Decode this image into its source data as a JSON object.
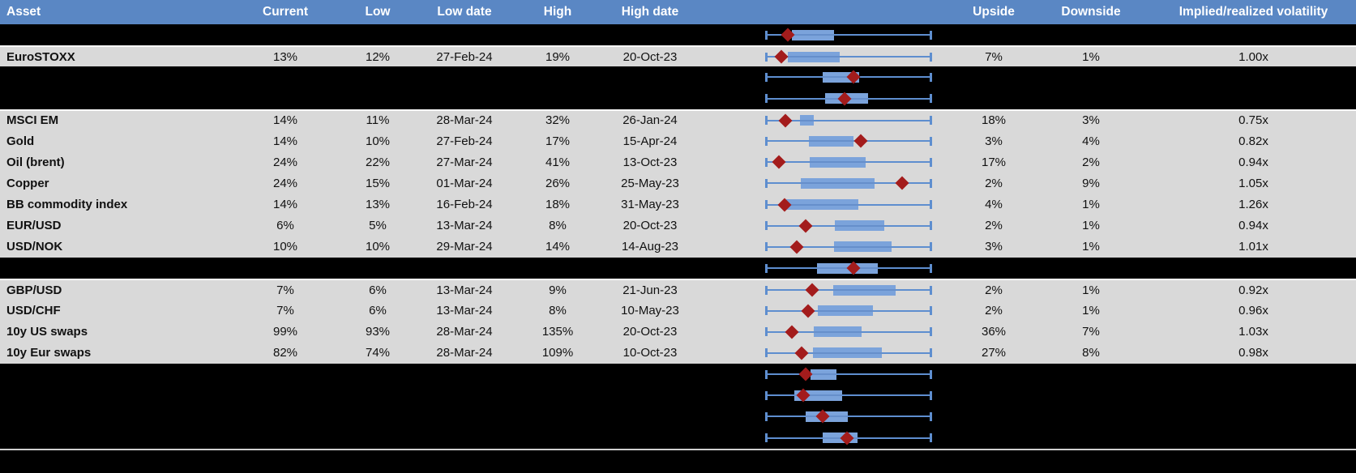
{
  "colors": {
    "header_bg": "#5A87C4",
    "row_bg": "#D9D9D9",
    "hidden_row_bg": "#000000",
    "box_fill": "#7BA3DB",
    "whisker": "#5E8ECF",
    "marker": "#A31C1C",
    "footer_separator": "#CFCFCF",
    "separator_white": "#FFFFFF"
  },
  "chart_data": {
    "type": "table",
    "columns": [
      "Asset",
      "Current",
      "Low",
      "Low date",
      "High",
      "High date",
      "",
      "Upside",
      "Downside",
      "Implied/realized volatility"
    ],
    "boxplot": {
      "description": "Horizontal box plot per row: whiskers = low/high of range, blue box = middle band, red diamond = current level",
      "units": "fractions 0-1 of whisker span (left cap = 0, right cap = 1)"
    },
    "rows": [
      {
        "kind": "hidden",
        "plot": {
          "box_lo": 0.157,
          "box_hi": 0.412,
          "marker": 0.137
        }
      },
      {
        "kind": "data",
        "sep_top": true,
        "asset": "EuroSTOXX",
        "current": "13%",
        "low": "12%",
        "low_date": "27-Feb-24",
        "high": "19%",
        "high_date": "20-Oct-23",
        "upside": "7%",
        "downside": "1%",
        "impl_real": "1.00x",
        "plot": {
          "box_lo": 0.135,
          "box_hi": 0.447,
          "marker": 0.096
        }
      },
      {
        "kind": "hidden",
        "plot": {
          "box_lo": 0.348,
          "box_hi": 0.564,
          "marker": 0.534
        }
      },
      {
        "kind": "hidden",
        "plot": {
          "box_lo": 0.358,
          "box_hi": 0.619,
          "marker": 0.48
        }
      },
      {
        "kind": "data",
        "sep_top": true,
        "asset": "MSCI EM",
        "current": "14%",
        "low": "11%",
        "low_date": "28-Mar-24",
        "high": "32%",
        "high_date": "26-Jan-24",
        "upside": "18%",
        "downside": "3%",
        "impl_real": "0.75x",
        "plot": {
          "box_lo": 0.206,
          "box_hi": 0.293,
          "marker": 0.121
        }
      },
      {
        "kind": "data",
        "asset": "Gold",
        "current": "14%",
        "low": "10%",
        "low_date": "27-Feb-24",
        "high": "17%",
        "high_date": "15-Apr-24",
        "upside": "3%",
        "downside": "4%",
        "impl_real": "0.82x",
        "plot": {
          "box_lo": 0.263,
          "box_hi": 0.533,
          "marker": 0.577
        }
      },
      {
        "kind": "data",
        "asset": "Oil (brent)",
        "current": "24%",
        "low": "22%",
        "low_date": "27-Mar-24",
        "high": "41%",
        "high_date": "13-Oct-23",
        "upside": "17%",
        "downside": "2%",
        "impl_real": "0.94x",
        "plot": {
          "box_lo": 0.268,
          "box_hi": 0.603,
          "marker": 0.083
        }
      },
      {
        "kind": "data",
        "asset": "Copper",
        "current": "24%",
        "low": "15%",
        "low_date": "01-Mar-24",
        "high": "26%",
        "high_date": "25-May-23",
        "upside": "2%",
        "downside": "9%",
        "impl_real": "1.05x",
        "plot": {
          "box_lo": 0.214,
          "box_hi": 0.66,
          "marker": 0.824
        }
      },
      {
        "kind": "data",
        "asset": "BB commodity index",
        "current": "14%",
        "low": "13%",
        "low_date": "16-Feb-24",
        "high": "18%",
        "high_date": "31-May-23",
        "upside": "4%",
        "downside": "1%",
        "impl_real": "1.26x",
        "plot": {
          "box_lo": 0.124,
          "box_hi": 0.562,
          "marker": 0.116
        }
      },
      {
        "kind": "data",
        "asset": "EUR/USD",
        "current": "6%",
        "low": "5%",
        "low_date": "13-Mar-24",
        "high": "8%",
        "high_date": "20-Oct-23",
        "upside": "2%",
        "downside": "1%",
        "impl_real": "0.94x",
        "plot": {
          "box_lo": 0.418,
          "box_hi": 0.717,
          "marker": 0.244
        }
      },
      {
        "kind": "data",
        "asset": "USD/NOK",
        "current": "10%",
        "low": "10%",
        "low_date": "29-Mar-24",
        "high": "14%",
        "high_date": "14-Aug-23",
        "upside": "3%",
        "downside": "1%",
        "impl_real": "1.01x",
        "plot": {
          "box_lo": 0.415,
          "box_hi": 0.761,
          "marker": 0.19
        }
      },
      {
        "kind": "hidden",
        "plot": {
          "box_lo": 0.312,
          "box_hi": 0.68,
          "marker": 0.533
        }
      },
      {
        "kind": "data",
        "sep_top": true,
        "asset": "GBP/USD",
        "current": "7%",
        "low": "6%",
        "low_date": "13-Mar-24",
        "high": "9%",
        "high_date": "21-Jun-23",
        "upside": "2%",
        "downside": "1%",
        "impl_real": "0.92x",
        "plot": {
          "box_lo": 0.41,
          "box_hi": 0.786,
          "marker": 0.284
        }
      },
      {
        "kind": "data",
        "asset": "USD/CHF",
        "current": "7%",
        "low": "6%",
        "low_date": "13-Mar-24",
        "high": "8%",
        "high_date": "10-May-23",
        "upside": "2%",
        "downside": "1%",
        "impl_real": "0.96x",
        "plot": {
          "box_lo": 0.315,
          "box_hi": 0.65,
          "marker": 0.258
        }
      },
      {
        "kind": "data",
        "asset": "10y US swaps",
        "current": "99%",
        "low": "93%",
        "low_date": "28-Mar-24",
        "high": "135%",
        "high_date": "20-Oct-23",
        "upside": "36%",
        "downside": "7%",
        "impl_real": "1.03x",
        "plot": {
          "box_lo": 0.293,
          "box_hi": 0.582,
          "marker": 0.157
        }
      },
      {
        "kind": "data",
        "asset": "10y Eur swaps",
        "current": "82%",
        "low": "74%",
        "low_date": "28-Mar-24",
        "high": "109%",
        "high_date": "10-Oct-23",
        "upside": "27%",
        "downside": "8%",
        "impl_real": "0.98x",
        "plot": {
          "box_lo": 0.288,
          "box_hi": 0.701,
          "marker": 0.219
        }
      },
      {
        "kind": "hidden",
        "plot": {
          "box_lo": 0.271,
          "box_hi": 0.431,
          "marker": 0.244
        }
      },
      {
        "kind": "hidden",
        "plot": {
          "box_lo": 0.173,
          "box_hi": 0.464,
          "marker": 0.227
        }
      },
      {
        "kind": "hidden",
        "plot": {
          "box_lo": 0.244,
          "box_hi": 0.497,
          "marker": 0.345
        }
      },
      {
        "kind": "hidden",
        "plot": {
          "box_lo": 0.345,
          "box_hi": 0.554,
          "marker": 0.492
        }
      }
    ]
  }
}
